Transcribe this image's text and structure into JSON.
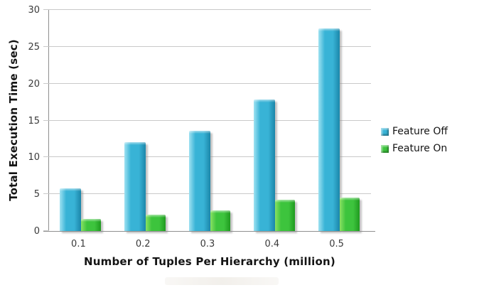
{
  "chart_data": {
    "type": "bar",
    "title": "",
    "categories": [
      "0.1",
      "0.2",
      "0.3",
      "0.4",
      "0.5"
    ],
    "series": [
      {
        "name": "Feature Off",
        "values": [
          5.8,
          12.1,
          13.6,
          17.8,
          27.5
        ],
        "color": "#38b3d6",
        "color_light": "#9fe2f2",
        "color_dark": "#1b86a9"
      },
      {
        "name": "Feature On",
        "values": [
          1.6,
          2.2,
          2.8,
          4.2,
          4.5
        ],
        "color": "#3dc43d",
        "color_light": "#8ae163",
        "color_dark": "#1f9a1f"
      }
    ],
    "xlabel": "Number of Tuples Per Hierarchy (million)",
    "ylabel": "Total Execution Time  (sec)",
    "ylim": [
      0,
      30
    ],
    "yticks": [
      0,
      5,
      10,
      15,
      20,
      25,
      30
    ],
    "grid": true,
    "legend_position": "right"
  },
  "colors": {
    "background": "#ffffff",
    "gridline": "#c9c9c9",
    "axis": "#8f8f8f",
    "tick_text": "#3a3a3a",
    "title_text": "#141414",
    "shadow": "rgba(137,137,137,0.5)"
  }
}
